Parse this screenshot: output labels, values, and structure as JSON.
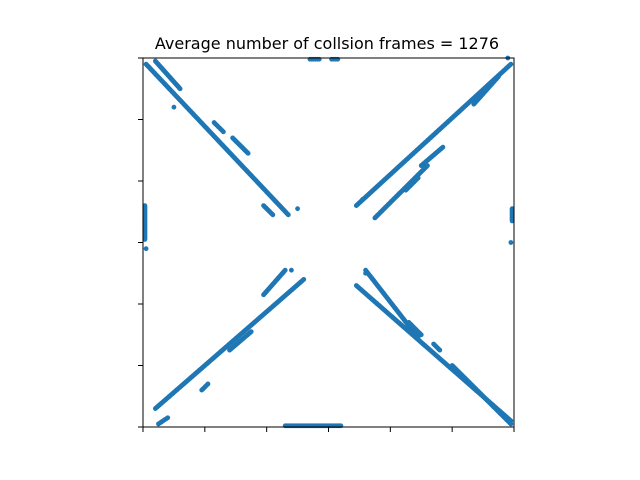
{
  "chart_data": {
    "type": "scatter",
    "title": "Average number of collsion frames = 1276",
    "xlabel": "",
    "ylabel": "",
    "xlim": [
      0,
      6
    ],
    "ylim": [
      0,
      6
    ],
    "x_ticks": [
      0,
      1,
      2,
      3,
      4,
      5,
      6
    ],
    "y_ticks": [
      0,
      1,
      2,
      3,
      4,
      5,
      6
    ],
    "tick_labels_visible": false,
    "grid": false,
    "legend": "none",
    "marker_color": "#1f77b4",
    "segments": [
      {
        "name": "upper-left-main",
        "from": [
          0.05,
          5.9
        ],
        "to": [
          2.35,
          3.45
        ],
        "step": 0.02
      },
      {
        "name": "upper-left-partial",
        "from": [
          0.2,
          5.95
        ],
        "to": [
          0.6,
          5.5
        ],
        "step": 0.015
      },
      {
        "name": "upper-left-dash-1",
        "from": [
          1.15,
          4.95
        ],
        "to": [
          1.3,
          4.8
        ],
        "step": 0.03
      },
      {
        "name": "upper-left-dash-2",
        "from": [
          1.45,
          4.7
        ],
        "to": [
          1.7,
          4.45
        ],
        "step": 0.02
      },
      {
        "name": "upper-left-dash-3",
        "from": [
          1.95,
          3.6
        ],
        "to": [
          2.1,
          3.45
        ],
        "step": 0.02
      },
      {
        "name": "upper-right-main",
        "from": [
          3.45,
          3.6
        ],
        "to": [
          5.95,
          5.9
        ],
        "step": 0.02
      },
      {
        "name": "upper-right-partial",
        "from": [
          3.75,
          3.4
        ],
        "to": [
          4.6,
          4.25
        ],
        "step": 0.02
      },
      {
        "name": "upper-right-partial-2",
        "from": [
          5.35,
          5.25
        ],
        "to": [
          5.75,
          5.7
        ],
        "step": 0.015
      },
      {
        "name": "upper-right-dash-1",
        "from": [
          4.25,
          3.85
        ],
        "to": [
          4.45,
          4.05
        ],
        "step": 0.03
      },
      {
        "name": "upper-right-dash-2",
        "from": [
          4.5,
          4.25
        ],
        "to": [
          4.85,
          4.55
        ],
        "step": 0.02
      },
      {
        "name": "lower-left-main",
        "from": [
          0.2,
          0.3
        ],
        "to": [
          2.6,
          2.4
        ],
        "step": 0.02
      },
      {
        "name": "lower-left-partial",
        "from": [
          0.25,
          0.05
        ],
        "to": [
          0.4,
          0.15
        ],
        "step": 0.03
      },
      {
        "name": "lower-left-dash-1",
        "from": [
          0.95,
          0.6
        ],
        "to": [
          1.05,
          0.7
        ],
        "step": 0.03
      },
      {
        "name": "lower-left-dash-2",
        "from": [
          1.4,
          1.25
        ],
        "to": [
          1.75,
          1.55
        ],
        "step": 0.02
      },
      {
        "name": "lower-left-dash-3",
        "from": [
          1.95,
          2.15
        ],
        "to": [
          2.3,
          2.55
        ],
        "step": 0.02
      },
      {
        "name": "lower-right-main",
        "from": [
          3.45,
          2.3
        ],
        "to": [
          5.95,
          0.1
        ],
        "step": 0.02
      },
      {
        "name": "lower-right-partial",
        "from": [
          3.6,
          2.55
        ],
        "to": [
          4.45,
          1.45
        ],
        "step": 0.02
      },
      {
        "name": "lower-right-partial-2",
        "from": [
          5.0,
          1.0
        ],
        "to": [
          5.95,
          0.05
        ],
        "step": 0.015
      },
      {
        "name": "lower-right-dash-1",
        "from": [
          4.3,
          1.7
        ],
        "to": [
          4.5,
          1.5
        ],
        "step": 0.03
      },
      {
        "name": "lower-right-dash-2",
        "from": [
          4.7,
          1.35
        ],
        "to": [
          4.8,
          1.25
        ],
        "step": 0.03
      },
      {
        "name": "left-edge-cluster",
        "from": [
          0.03,
          3.6
        ],
        "to": [
          0.03,
          3.05
        ],
        "step": 0.012
      },
      {
        "name": "right-edge-cluster",
        "from": [
          5.97,
          3.55
        ],
        "to": [
          5.97,
          3.35
        ],
        "step": 0.015
      },
      {
        "name": "bottom-edge-cluster",
        "from": [
          2.3,
          0.02
        ],
        "to": [
          3.2,
          0.02
        ],
        "step": 0.02
      },
      {
        "name": "top-edge-cluster-1",
        "from": [
          2.7,
          5.98
        ],
        "to": [
          2.85,
          5.98
        ],
        "step": 0.03
      },
      {
        "name": "top-edge-cluster-2",
        "from": [
          3.05,
          5.98
        ],
        "to": [
          3.15,
          5.98
        ],
        "step": 0.03
      }
    ],
    "points": [
      [
        0.05,
        2.9
      ],
      [
        5.95,
        3.0
      ],
      [
        2.5,
        3.55
      ],
      [
        3.55,
        3.7
      ],
      [
        3.6,
        2.5
      ],
      [
        2.4,
        2.55
      ],
      [
        5.9,
        6.0
      ],
      [
        0.5,
        5.2
      ]
    ]
  }
}
